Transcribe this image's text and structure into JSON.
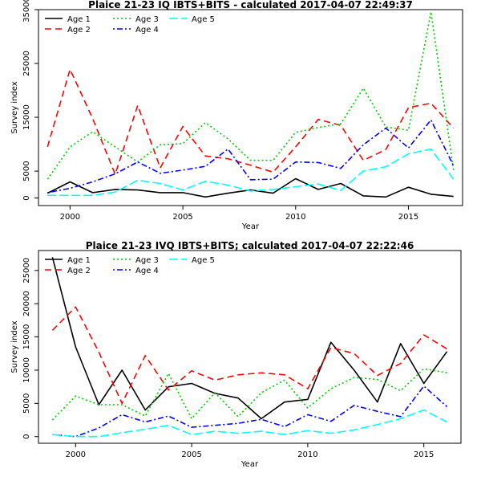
{
  "chart_data": [
    {
      "type": "line",
      "title": "Plaice 21-23 IQ IBTS+BITS - calculated 2017-04-07 22:49:37",
      "xlabel": "Year",
      "ylabel": "Survey index",
      "xlim": [
        1998.6,
        2017.4
      ],
      "ylim": [
        -1400,
        35000
      ],
      "xticks": [
        "2000",
        "2005",
        "2010",
        "2015"
      ],
      "yticks": [
        "0",
        "5000",
        "15000",
        "25000",
        "35000"
      ],
      "legend_position": "top-left",
      "x": [
        1999,
        2000,
        2001,
        2002,
        2003,
        2004,
        2005,
        2006,
        2007,
        2008,
        2009,
        2010,
        2011,
        2012,
        2013,
        2014,
        2015,
        2016,
        2017
      ],
      "series": [
        {
          "name": "Age 1",
          "color": "#000000",
          "dash": "solid",
          "values": [
            900,
            3000,
            1000,
            1600,
            1500,
            1000,
            1000,
            200,
            900,
            1500,
            900,
            3600,
            1600,
            2700,
            400,
            200,
            2000,
            700,
            300
          ]
        },
        {
          "name": "Age 2",
          "color": "#ff0000",
          "dash": "dashed",
          "values": [
            9500,
            23900,
            14800,
            4400,
            17200,
            5600,
            13300,
            7800,
            7300,
            6100,
            4800,
            9500,
            14600,
            13500,
            7000,
            9000,
            16800,
            17600,
            13000
          ]
        },
        {
          "name": "Age 3",
          "color": "#00cd00",
          "dash": "dotted",
          "values": [
            3500,
            9500,
            12300,
            9500,
            6700,
            9900,
            10100,
            14000,
            11000,
            7000,
            7000,
            12200,
            13100,
            13800,
            20400,
            13200,
            12600,
            34600,
            5200
          ]
        },
        {
          "name": "Age 4",
          "color": "#0000ff",
          "dash": "dotdash",
          "values": [
            1000,
            1800,
            3000,
            4500,
            6700,
            4600,
            5200,
            5900,
            9100,
            3400,
            3500,
            6700,
            6600,
            5500,
            9900,
            13000,
            9300,
            14500,
            6000
          ]
        },
        {
          "name": "Age 5",
          "color": "#00ffff",
          "dash": "longdash",
          "values": [
            500,
            500,
            500,
            1100,
            3300,
            2700,
            1500,
            3100,
            2400,
            1300,
            1600,
            2100,
            2600,
            1400,
            5000,
            5800,
            8200,
            9100,
            3500
          ]
        }
      ]
    },
    {
      "type": "line",
      "title": "Plaice 21-23 IVQ IBTS+BITS; calculated 2017-04-07 22:22:46",
      "xlabel": "Year",
      "ylabel": "Survey index",
      "xlim": [
        1998.4,
        2016.6
      ],
      "ylim": [
        -1000,
        28000
      ],
      "xticks": [
        "2000",
        "2005",
        "2010",
        "2015"
      ],
      "yticks": [
        "0",
        "5000",
        "10000",
        "15000",
        "20000",
        "25000"
      ],
      "legend_position": "top-left",
      "x": [
        1999,
        2000,
        2001,
        2002,
        2003,
        2004,
        2005,
        2006,
        2007,
        2008,
        2009,
        2010,
        2011,
        2012,
        2013,
        2014,
        2015,
        2016
      ],
      "series": [
        {
          "name": "Age 1",
          "color": "#000000",
          "dash": "solid",
          "values": [
            27000,
            13500,
            4800,
            10000,
            4000,
            7500,
            8000,
            6500,
            5800,
            2700,
            5200,
            5600,
            14200,
            10000,
            5200,
            14000,
            8000,
            12800
          ]
        },
        {
          "name": "Age 2",
          "color": "#ff0000",
          "dash": "dashed",
          "values": [
            16000,
            19500,
            12700,
            5000,
            12200,
            7000,
            9900,
            8500,
            9300,
            9600,
            9300,
            7200,
            13400,
            12500,
            9200,
            11000,
            15300,
            13200
          ]
        },
        {
          "name": "Age 3",
          "color": "#00cd00",
          "dash": "dotted",
          "values": [
            2500,
            6100,
            4800,
            4800,
            3100,
            9500,
            2700,
            6600,
            3000,
            6600,
            8500,
            4300,
            7200,
            8900,
            8600,
            6900,
            10200,
            9600
          ]
        },
        {
          "name": "Age 4",
          "color": "#0000ff",
          "dash": "dotdash",
          "values": [
            300,
            0,
            1300,
            3300,
            2200,
            3100,
            1400,
            1700,
            2000,
            2600,
            1500,
            3300,
            2300,
            4700,
            3800,
            3000,
            7600,
            4500
          ]
        },
        {
          "name": "Age 5",
          "color": "#00ffff",
          "dash": "longdash",
          "values": [
            300,
            0,
            0,
            600,
            1100,
            1700,
            300,
            800,
            500,
            800,
            300,
            900,
            500,
            1000,
            1800,
            2700,
            4000,
            2200
          ]
        }
      ]
    }
  ]
}
